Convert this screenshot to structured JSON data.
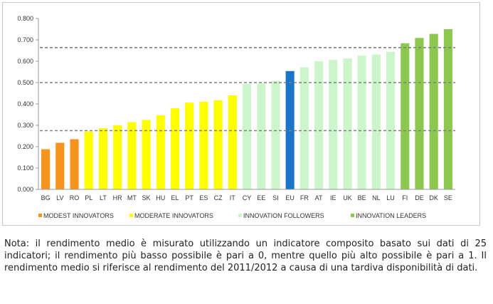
{
  "chart_data": {
    "type": "bar",
    "title": "",
    "xlabel": "",
    "ylabel": "",
    "ylim": [
      0,
      0.8
    ],
    "yticks": [
      "0.000",
      "0.100",
      "0.200",
      "0.300",
      "0.400",
      "0.500",
      "0.600",
      "0.700",
      "0.800"
    ],
    "grid": false,
    "legend_position": "bottom",
    "categories": [
      "BG",
      "LV",
      "RO",
      "PL",
      "LT",
      "HR",
      "MT",
      "SK",
      "HU",
      "EL",
      "PT",
      "ES",
      "CZ",
      "IT",
      "CY",
      "EE",
      "SI",
      "EU",
      "FR",
      "AT",
      "IE",
      "UK",
      "BE",
      "NL",
      "LU",
      "FI",
      "DE",
      "DK",
      "SE"
    ],
    "values": [
      0.188,
      0.218,
      0.235,
      0.271,
      0.287,
      0.301,
      0.315,
      0.325,
      0.347,
      0.38,
      0.406,
      0.41,
      0.417,
      0.44,
      0.493,
      0.496,
      0.508,
      0.554,
      0.571,
      0.6,
      0.606,
      0.613,
      0.626,
      0.631,
      0.644,
      0.684,
      0.709,
      0.728,
      0.75
    ],
    "groups": [
      "modest",
      "modest",
      "modest",
      "moderate",
      "moderate",
      "moderate",
      "moderate",
      "moderate",
      "moderate",
      "moderate",
      "moderate",
      "moderate",
      "moderate",
      "moderate",
      "followers",
      "followers",
      "followers",
      "eu",
      "followers",
      "followers",
      "followers",
      "followers",
      "followers",
      "followers",
      "followers",
      "leaders",
      "leaders",
      "leaders",
      "leaders"
    ],
    "group_colors": {
      "modest": "#f7941d",
      "moderate": "#ffff00",
      "followers": "#ccf5cc",
      "leaders": "#8cc850",
      "eu": "#1a75c8"
    },
    "threshold_lines": [
      0.275,
      0.5,
      0.664
    ],
    "threshold_color": "#808080",
    "legend": [
      {
        "label": "MODEST INNOVATORS",
        "group": "modest"
      },
      {
        "label": "MODERATE INNOVATORS",
        "group": "moderate"
      },
      {
        "label": "INNOVATION FOLLOWERS",
        "group": "followers"
      },
      {
        "label": "INNOVATION LEADERS",
        "group": "leaders"
      }
    ]
  },
  "note": "Nota: il rendimento medio è misurato utilizzando un indicatore composito basato sui dati di 25 indicatori; il rendimento più basso possibile è pari a 0, mentre quello più alto possibile è pari a 1. Il rendimento medio si riferisce al rendimento del 2011/2012 a causa di una tardiva disponibilità di dati."
}
